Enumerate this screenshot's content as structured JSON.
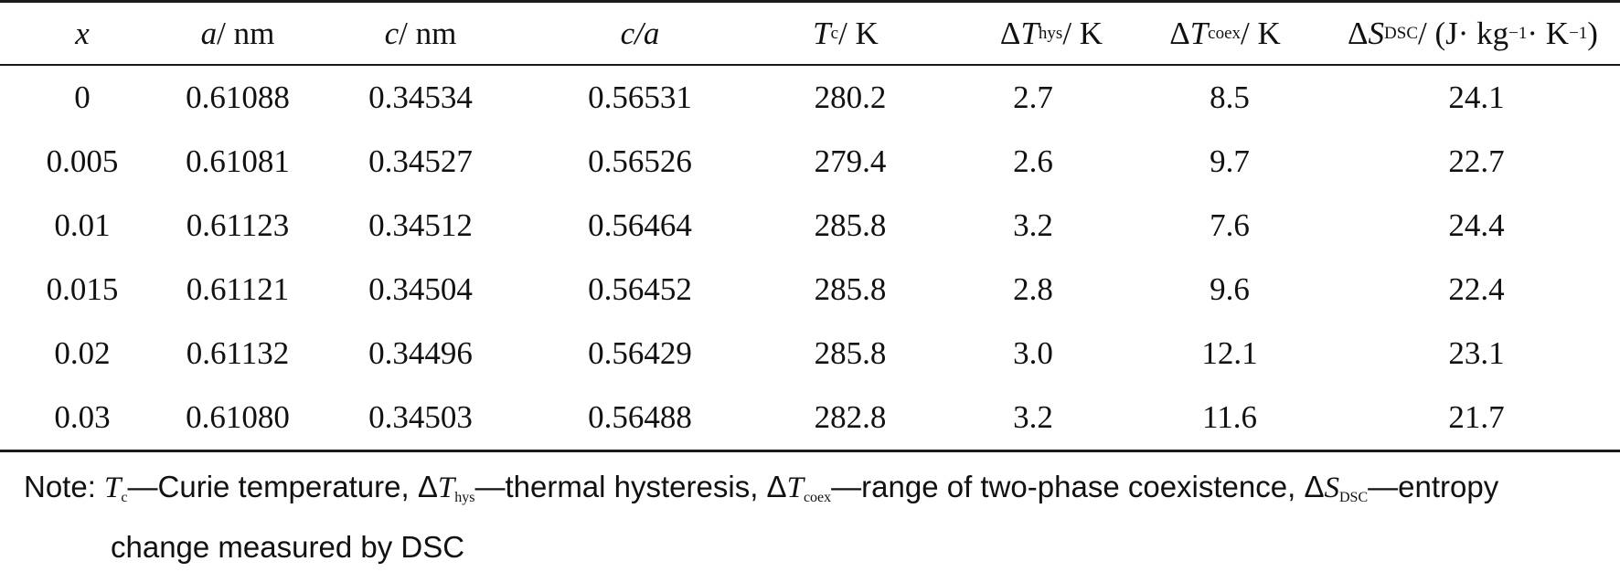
{
  "table": {
    "headers": {
      "x": "x",
      "a": {
        "sym": "a",
        "unit": " / nm"
      },
      "c": {
        "sym": "c",
        "unit": " / nm"
      },
      "ca": "c/a",
      "tc": {
        "sym": "T",
        "sub": "c",
        "unit": " / K"
      },
      "thys": {
        "delta": "Δ",
        "sym": "T",
        "sub": "hys",
        "unit": " / K"
      },
      "tcoex": {
        "delta": "Δ",
        "sym": "T",
        "sub": "coex",
        "unit": " / K"
      },
      "sdsc": {
        "delta": "Δ",
        "sym": "S",
        "sub": "DSC",
        "unit_pre": " / (J· kg",
        "sup1": "−1",
        "unit_mid": "· K",
        "sup2": "−1",
        "unit_post": ")"
      }
    },
    "rows": [
      [
        "0",
        "0.61088",
        "0.34534",
        "0.56531",
        "280.2",
        "2.7",
        "8.5",
        "24.1"
      ],
      [
        "0.005",
        "0.61081",
        "0.34527",
        "0.56526",
        "279.4",
        "2.6",
        "9.7",
        "22.7"
      ],
      [
        "0.01",
        "0.61123",
        "0.34512",
        "0.56464",
        "285.8",
        "3.2",
        "7.6",
        "24.4"
      ],
      [
        "0.015",
        "0.61121",
        "0.34504",
        "0.56452",
        "285.8",
        "2.8",
        "9.6",
        "22.4"
      ],
      [
        "0.02",
        "0.61132",
        "0.34496",
        "0.56429",
        "285.8",
        "3.0",
        "12.1",
        "23.1"
      ],
      [
        "0.03",
        "0.61080",
        "0.34503",
        "0.56488",
        "282.8",
        "3.2",
        "11.6",
        "21.7"
      ]
    ]
  },
  "note": {
    "prefix": "Note: ",
    "tc_sym": "T",
    "tc_sub": "c",
    "tc_text": "—Curie temperature, ",
    "delta": "Δ",
    "thys_sym": "T",
    "thys_sub": "hys",
    "thys_text": "—thermal hysteresis, ",
    "tcoex_sym": "T",
    "tcoex_sub": "coex",
    "tcoex_text": "—range of two-phase coexistence, ",
    "sdsc_sym": "S",
    "sdsc_sub": "DSC",
    "sdsc_text": "—entropy",
    "line2": "change measured by DSC"
  }
}
